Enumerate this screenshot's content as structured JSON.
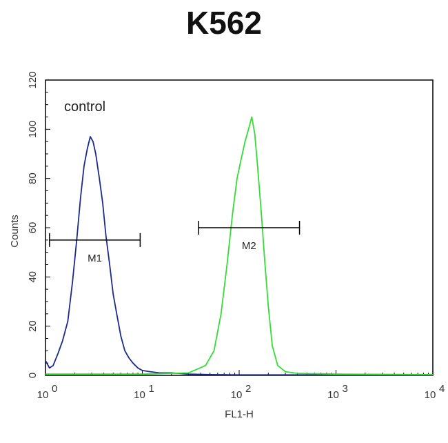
{
  "chart_data": {
    "type": "line",
    "title": "K562",
    "xlabel": "FL1-H",
    "ylabel": "Counts",
    "xscale": "log",
    "xlim": [
      1,
      10000
    ],
    "ylim": [
      0,
      120
    ],
    "y_ticks": [
      "0",
      "20",
      "40",
      "60",
      "80",
      "100",
      "120"
    ],
    "x_ticks": [
      {
        "base": "10",
        "exp": "0"
      },
      {
        "base": "10",
        "exp": "1"
      },
      {
        "base": "10",
        "exp": "2"
      },
      {
        "base": "10",
        "exp": "3"
      },
      {
        "base": "10",
        "exp": "4"
      }
    ],
    "grid": false,
    "annotation_control": "control",
    "series": [
      {
        "color": "#1a2a8c",
        "x": [
          1.0,
          1.1,
          1.2,
          1.35,
          1.5,
          1.7,
          1.9,
          2.1,
          2.3,
          2.5,
          2.7,
          2.9,
          3.1,
          3.3,
          3.6,
          3.9,
          4.2,
          4.6,
          5.0,
          5.5,
          6.0,
          6.6,
          7.3,
          8.0,
          9.0,
          10.0,
          12.0,
          15.0,
          20.0,
          30.0,
          50.0,
          100.0,
          1000.0,
          10000.0
        ],
        "y": [
          6,
          3,
          4,
          9,
          14,
          22,
          38,
          55,
          72,
          85,
          92,
          97,
          95,
          90,
          80,
          70,
          57,
          45,
          33,
          24,
          16,
          10,
          7,
          5,
          3,
          2,
          1.5,
          1,
          1,
          0.5,
          0.3,
          0.2,
          0.2,
          0.2
        ]
      },
      {
        "color": "#33dd33",
        "x": [
          1.0,
          10.0,
          30.0,
          45.0,
          55.0,
          65.0,
          75.0,
          85.0,
          95.0,
          105.0,
          115.0,
          125.0,
          135.0,
          145.0,
          155.0,
          170.0,
          185.0,
          200.0,
          220.0,
          250.0,
          300.0,
          400.0,
          1000.0,
          10000.0
        ],
        "y": [
          0.5,
          0.5,
          1,
          4,
          10,
          25,
          45,
          65,
          80,
          88,
          95,
          100,
          105,
          98,
          85,
          65,
          45,
          28,
          12,
          4,
          1.5,
          0.8,
          0.5,
          0.3
        ]
      }
    ],
    "markers": [
      {
        "label": "M1",
        "x_start": 1.1,
        "x_end": 9.5,
        "y": 55
      },
      {
        "label": "M2",
        "x_start": 38,
        "x_end": 420,
        "y": 60
      }
    ]
  }
}
